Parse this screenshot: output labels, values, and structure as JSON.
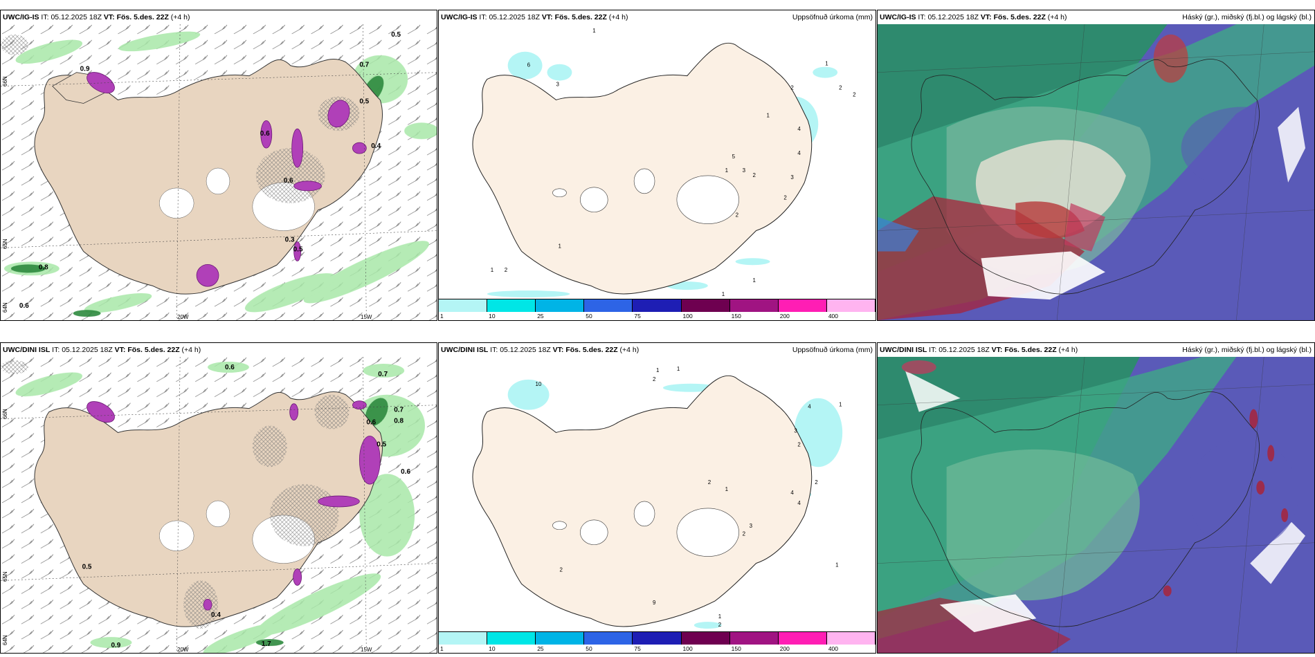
{
  "rows": [
    {
      "panels": [
        {
          "kind": "wind",
          "model": "UWC/IG-IS",
          "it_label": "IT:",
          "it_value": "05.12.2025 18Z",
          "vt_label": "VT:",
          "vt_value": "Fös. 5.des. 22Z",
          "lead": "(+4 h)",
          "right": "",
          "lat_labels": [
            "66N",
            "65N",
            "64N"
          ],
          "lon_labels": [
            "20W",
            "15W"
          ],
          "values": [
            "0.9",
            "0.7",
            "0.6",
            "0.5",
            "0.4",
            "0.3",
            "0.5",
            "0.8",
            "0.6",
            "0.5",
            "0.6"
          ]
        },
        {
          "kind": "precip",
          "model": "UWC/IG-IS",
          "it_label": "IT:",
          "it_value": "05.12.2025 18Z",
          "vt_label": "VT:",
          "vt_value": "Fös. 5.des. 22Z",
          "lead": "(+4 h)",
          "right": "Uppsöfnuð úrkoma (mm)",
          "values": [
            "1",
            "6",
            "3",
            "2",
            "1",
            "2",
            "2",
            "1",
            "5",
            "3",
            "4",
            "2",
            "1",
            "3",
            "2",
            "4",
            "1",
            "1",
            "2",
            "2",
            "1",
            "1"
          ]
        },
        {
          "kind": "cloud",
          "model": "UWC/IG-IS",
          "it_label": "IT:",
          "it_value": "05.12.2025 18Z",
          "vt_label": "VT:",
          "vt_value": "Fös. 5.des. 22Z",
          "lead": "(+4 h)",
          "right": "Háský (gr.), miðský (fj.bl.) og lágský (bl.)"
        }
      ]
    },
    {
      "panels": [
        {
          "kind": "wind",
          "model": "UWC/DINI ISL",
          "it_label": "IT:",
          "it_value": "05.12.2025 18Z",
          "vt_label": "VT:",
          "vt_value": "Fös. 5.des. 22Z",
          "lead": "(+4 h)",
          "right": "",
          "lat_labels": [
            "66N",
            "65N",
            "64N"
          ],
          "lon_labels": [
            "20W",
            "15W"
          ],
          "values": [
            "0.6",
            "0.7",
            "0.7",
            "0.8",
            "0.6",
            "0.5",
            "0.9",
            "1.7",
            "0.5",
            "0.6",
            "0.4"
          ]
        },
        {
          "kind": "precip",
          "model": "UWC/DINI ISL",
          "it_label": "IT:",
          "it_value": "05.12.2025 18Z",
          "vt_label": "VT:",
          "vt_value": "Fös. 5.des. 22Z",
          "lead": "(+4 h)",
          "right": "Uppsöfnuð úrkoma (mm)",
          "values": [
            "1",
            "1",
            "2",
            "10",
            "4",
            "1",
            "3",
            "2",
            "1",
            "2",
            "4",
            "3",
            "2",
            "1",
            "2",
            "9",
            "1",
            "2",
            "2",
            "4"
          ]
        },
        {
          "kind": "cloud",
          "model": "UWC/DINI ISL",
          "it_label": "IT:",
          "it_value": "05.12.2025 18Z",
          "vt_label": "VT:",
          "vt_value": "Fös. 5.des. 22Z",
          "lead": "(+4 h)",
          "right": "Háský (gr.), miðský (fj.bl.) og lágský (bl.)"
        }
      ]
    }
  ],
  "colorbar": {
    "labels": [
      "1",
      "10",
      "25",
      "50",
      "75",
      "100",
      "150",
      "200",
      "400"
    ],
    "colors": [
      "#b4f5f5",
      "#00e6e6",
      "#00b4e6",
      "#2d64e6",
      "#1e1eb4",
      "#6e0050",
      "#a01482",
      "#ff1eb4",
      "#ffb4f0"
    ]
  },
  "colors": {
    "land": "#f5e8d8",
    "land_wind": "#e8d5c0",
    "sea_cloud_high": "#5a5ab8",
    "cloud_mid": "#2e8a6e",
    "cloud_low": "#3c7fd6",
    "cloud_red": "#a8243a",
    "precip_light": "#b4f5f5",
    "wind_green": "#a8e8a8",
    "wind_purple": "#b040b8"
  }
}
